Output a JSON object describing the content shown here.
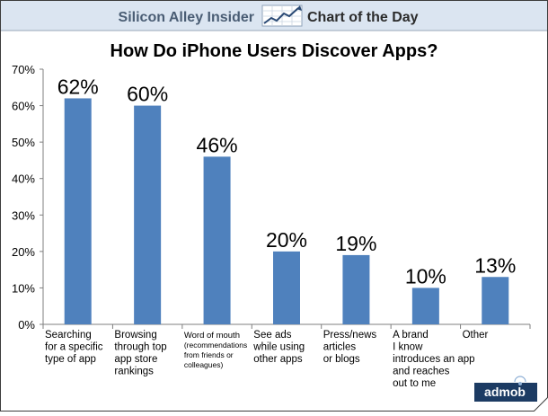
{
  "header": {
    "brand": "Silicon Alley Insider",
    "label": "Chart of the Day"
  },
  "footer": {
    "logo_text": "admob"
  },
  "chart_data": {
    "type": "bar",
    "title": "How Do iPhone Users Discover Apps?",
    "categories": [
      [
        "Searching",
        "for a specific",
        "type of app"
      ],
      [
        "Browsing",
        "through top",
        "app store",
        "rankings"
      ],
      [
        "Word of mouth",
        "(recommendations",
        "from friends or",
        "colleagues)"
      ],
      [
        "See ads",
        "while using",
        "other apps"
      ],
      [
        "Press/news",
        "articles",
        "or blogs"
      ],
      [
        "A brand",
        "I know",
        "introduces an app",
        "and reaches",
        "out to me"
      ],
      [
        "Other"
      ]
    ],
    "values": [
      62,
      60,
      46,
      20,
      19,
      10,
      13
    ],
    "data_labels": [
      "62%",
      "60%",
      "46%",
      "20%",
      "19%",
      "10%",
      "13%"
    ],
    "y_ticks": [
      "0%",
      "10%",
      "20%",
      "30%",
      "40%",
      "50%",
      "60%",
      "70%"
    ],
    "ylim": [
      0,
      70
    ],
    "xlabel": "",
    "ylabel": "",
    "grid": false,
    "bar_color": "#4f81bd"
  },
  "colors": {
    "header_bg": "#dbe5f1",
    "header_text": "#4a5d74",
    "frame": "#3c3c3c",
    "logo_bg": "#1c3b63"
  }
}
